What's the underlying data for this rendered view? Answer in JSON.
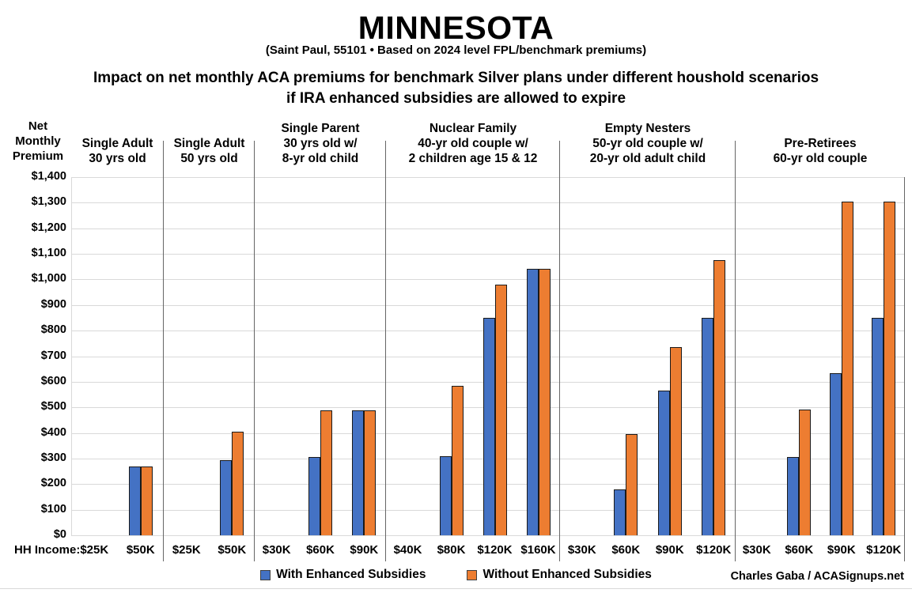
{
  "chart_data": {
    "type": "bar",
    "title": "MINNESOTA",
    "subtitle": "(Saint Paul, 55101 • Based on 2024 level FPL/benchmark premiums)",
    "description_line1": "Impact on net monthly ACA premiums for benchmark Silver plans under different houshold scenarios",
    "description_line2": "if IRA enhanced subsidies are allowed to expire",
    "ylabel": "Net Monthly Premium",
    "xlabel": "HH Income:",
    "ylim": [
      0,
      1400
    ],
    "ytick_step": 100,
    "ytick_format": "dollar",
    "grid": true,
    "legend_position": "bottom",
    "series_names": [
      "With Enhanced Subsidies",
      "Without Enhanced Subsidies"
    ],
    "series_colors": [
      "#4472C4",
      "#ED7D31"
    ],
    "groups": [
      {
        "label_lines": [
          "Single Adult",
          "30 yrs old"
        ],
        "incomes": [
          "$25K",
          "$50K"
        ],
        "with_enhanced": [
          0,
          270
        ],
        "without_enhanced": [
          0,
          270
        ]
      },
      {
        "label_lines": [
          "Single Adult",
          "50 yrs old"
        ],
        "incomes": [
          "$25K",
          "$50K"
        ],
        "with_enhanced": [
          0,
          295
        ],
        "without_enhanced": [
          0,
          405
        ]
      },
      {
        "label_lines": [
          "Single Parent",
          "30 yrs old w/",
          "8-yr old child"
        ],
        "incomes": [
          "$30K",
          "$60K",
          "$90K"
        ],
        "with_enhanced": [
          0,
          305,
          487
        ],
        "without_enhanced": [
          0,
          487,
          487
        ]
      },
      {
        "label_lines": [
          "Nuclear Family",
          "40-yr old couple w/",
          "2 children age 15 & 12"
        ],
        "incomes": [
          "$40K",
          "$80K",
          "$120K",
          "$160K"
        ],
        "with_enhanced": [
          0,
          310,
          850,
          1040
        ],
        "without_enhanced": [
          0,
          585,
          980,
          1040
        ]
      },
      {
        "label_lines": [
          "Empty Nesters",
          "50-yr old couple w/",
          "20-yr old adult child"
        ],
        "incomes": [
          "$30K",
          "$60K",
          "$90K",
          "$120K"
        ],
        "with_enhanced": [
          0,
          180,
          565,
          850
        ],
        "without_enhanced": [
          0,
          395,
          735,
          1075
        ]
      },
      {
        "label_lines": [
          "Pre-Retirees",
          "60-yr old couple"
        ],
        "incomes": [
          "$30K",
          "$60K",
          "$90K",
          "$120K"
        ],
        "with_enhanced": [
          0,
          305,
          635,
          850
        ],
        "without_enhanced": [
          0,
          490,
          1305,
          1305
        ]
      }
    ],
    "credit": "Charles Gaba / ACASignups.net"
  }
}
